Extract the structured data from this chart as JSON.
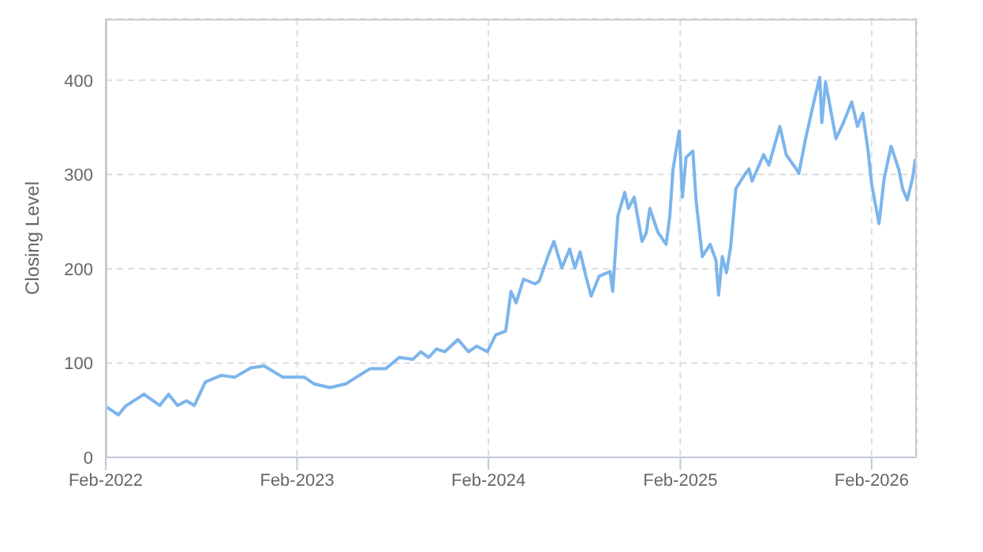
{
  "chart_data": {
    "type": "line",
    "ylabel": "Closing Level",
    "x": [
      "2022-02-01",
      "2022-02-25",
      "2022-03-10",
      "2022-04-15",
      "2022-05-15",
      "2022-06-01",
      "2022-06-18",
      "2022-07-05",
      "2022-07-20",
      "2022-08-10",
      "2022-09-10",
      "2022-10-05",
      "2022-11-05",
      "2022-11-30",
      "2023-01-05",
      "2023-02-15",
      "2023-03-05",
      "2023-04-05",
      "2023-05-05",
      "2023-06-20",
      "2023-07-20",
      "2023-08-15",
      "2023-09-10",
      "2023-09-25",
      "2023-10-10",
      "2023-10-25",
      "2023-11-10",
      "2023-12-05",
      "2023-12-25",
      "2024-01-10",
      "2024-01-30",
      "2024-02-15",
      "2024-03-05",
      "2024-03-15",
      "2024-03-25",
      "2024-04-08",
      "2024-04-30",
      "2024-05-08",
      "2024-05-25",
      "2024-06-05",
      "2024-06-20",
      "2024-07-05",
      "2024-07-15",
      "2024-07-25",
      "2024-08-05",
      "2024-08-15",
      "2024-08-30",
      "2024-09-20",
      "2024-09-25",
      "2024-10-05",
      "2024-10-18",
      "2024-10-25",
      "2024-11-05",
      "2024-11-20",
      "2024-11-28",
      "2024-12-05",
      "2024-12-20",
      "2025-01-05",
      "2025-01-12",
      "2025-01-18",
      "2025-01-30",
      "2025-02-05",
      "2025-02-12",
      "2025-02-25",
      "2025-03-03",
      "2025-03-15",
      "2025-03-30",
      "2025-04-10",
      "2025-04-15",
      "2025-04-22",
      "2025-04-30",
      "2025-05-08",
      "2025-05-18",
      "2025-06-05",
      "2025-06-12",
      "2025-06-18",
      "2025-07-10",
      "2025-07-20",
      "2025-08-10",
      "2025-08-22",
      "2025-09-10",
      "2025-09-15",
      "2025-09-28",
      "2025-10-15",
      "2025-10-25",
      "2025-10-29",
      "2025-11-05",
      "2025-11-25",
      "2025-12-10",
      "2025-12-25",
      "2026-01-05",
      "2026-01-15",
      "2026-01-25",
      "2026-02-01",
      "2026-02-15",
      "2026-02-25",
      "2026-03-10",
      "2026-03-25",
      "2026-04-01",
      "2026-04-10",
      "2026-04-20",
      "2026-04-25",
      "2026-04-28"
    ],
    "series": [
      {
        "color": "#7cb5ec",
        "values": [
          54,
          45,
          54,
          67,
          55,
          67,
          55,
          60,
          55,
          80,
          87,
          85,
          95,
          97,
          85,
          85,
          78,
          74,
          78,
          94,
          94,
          106,
          104,
          112,
          106,
          115,
          112,
          125,
          112,
          118,
          112,
          130,
          134,
          176,
          164,
          189,
          184,
          187,
          214,
          229,
          201,
          221,
          201,
          218,
          192,
          171,
          192,
          197,
          176,
          256,
          281,
          264,
          276,
          229,
          238,
          264,
          239,
          226,
          256,
          305,
          346,
          276,
          318,
          325,
          273,
          213,
          226,
          209,
          172,
          213,
          196,
          223,
          285,
          301,
          306,
          293,
          321,
          310,
          351,
          321,
          306,
          301,
          338,
          380,
          403,
          355,
          398,
          338,
          356,
          377,
          351,
          365,
          326,
          290,
          248,
          296,
          330,
          305,
          285,
          273,
          296,
          315,
          301
        ]
      }
    ],
    "xlim": [
      "2022-02-01",
      "2026-04-28"
    ],
    "xticks": [
      {
        "value": "2022-02-01",
        "label": "Feb-2022"
      },
      {
        "value": "2023-02-01",
        "label": "Feb-2023"
      },
      {
        "value": "2024-02-01",
        "label": "Feb-2024"
      },
      {
        "value": "2025-02-01",
        "label": "Feb-2025"
      },
      {
        "value": "2026-02-01",
        "label": "Feb-2026"
      }
    ],
    "ylim": [
      0,
      465
    ],
    "yticks": [
      0,
      100,
      200,
      300,
      400
    ],
    "grid": true,
    "marker": "none",
    "line_style": "solid"
  }
}
